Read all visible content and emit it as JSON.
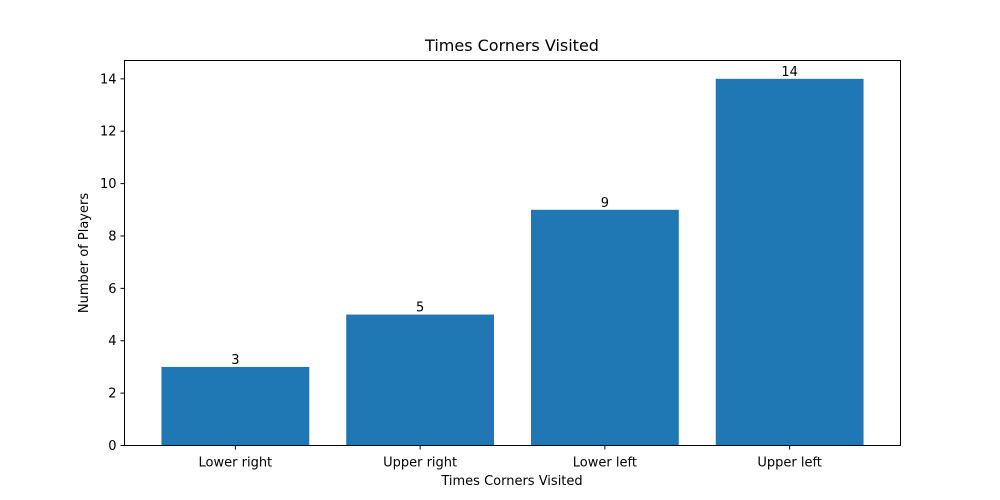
{
  "chart_data": {
    "type": "bar",
    "title": "Times Corners Visited",
    "xlabel": "Times Corners Visited",
    "ylabel": "Number of Players",
    "categories": [
      "Lower right",
      "Upper right",
      "Lower left",
      "Upper left"
    ],
    "values": [
      3,
      5,
      9,
      14
    ],
    "data_labels": [
      "3",
      "5",
      "9",
      "14"
    ],
    "ylim": [
      0,
      14.7
    ],
    "yticks": [
      0,
      2,
      4,
      6,
      8,
      10,
      12,
      14
    ],
    "ytick_labels": [
      "0",
      "2",
      "4",
      "6",
      "8",
      "10",
      "12",
      "14"
    ],
    "grid": false,
    "bar_color": "#1f77b4"
  }
}
